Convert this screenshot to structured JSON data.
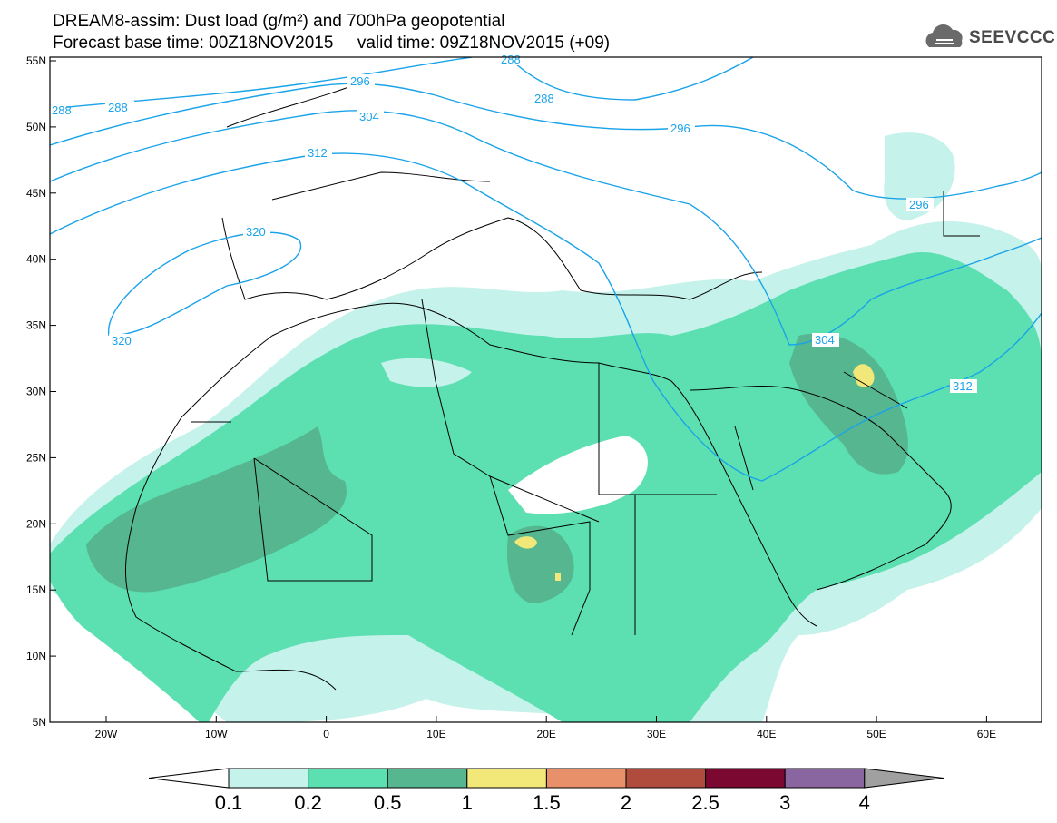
{
  "header": {
    "title_line1": "DREAM8-assim: Dust load (g/m²) and 700hPa geopotential",
    "title_line2": "Forecast base time: 00Z18NOV2015     valid time: 09Z18NOV2015 (+09)"
  },
  "logo": {
    "text": "SEEVCCC",
    "icon": "cloud-logo-icon"
  },
  "map": {
    "lat_labels": [
      "55N",
      "50N",
      "45N",
      "40N",
      "35N",
      "30N",
      "25N",
      "20N",
      "15N",
      "10N",
      "5N"
    ],
    "lon_labels": [
      "20W",
      "10W",
      "0",
      "10E",
      "20E",
      "30E",
      "40E",
      "50E",
      "60E"
    ],
    "contour_labels": [
      "288",
      "288",
      "296",
      "304",
      "312",
      "320",
      "320",
      "288",
      "296",
      "296",
      "304",
      "312",
      "288"
    ],
    "colors": {
      "geopotential_line": "#1aa3e8",
      "border": "#000000"
    }
  },
  "colorbar": {
    "labels": [
      "0.1",
      "0.2",
      "0.5",
      "1",
      "1.5",
      "2",
      "2.5",
      "3",
      "4"
    ],
    "colors": [
      "#c5f2ea",
      "#5ce0b2",
      "#55b690",
      "#f2e87a",
      "#e8906a",
      "#b04c3e",
      "#7a0830",
      "#8a66a0"
    ]
  }
}
